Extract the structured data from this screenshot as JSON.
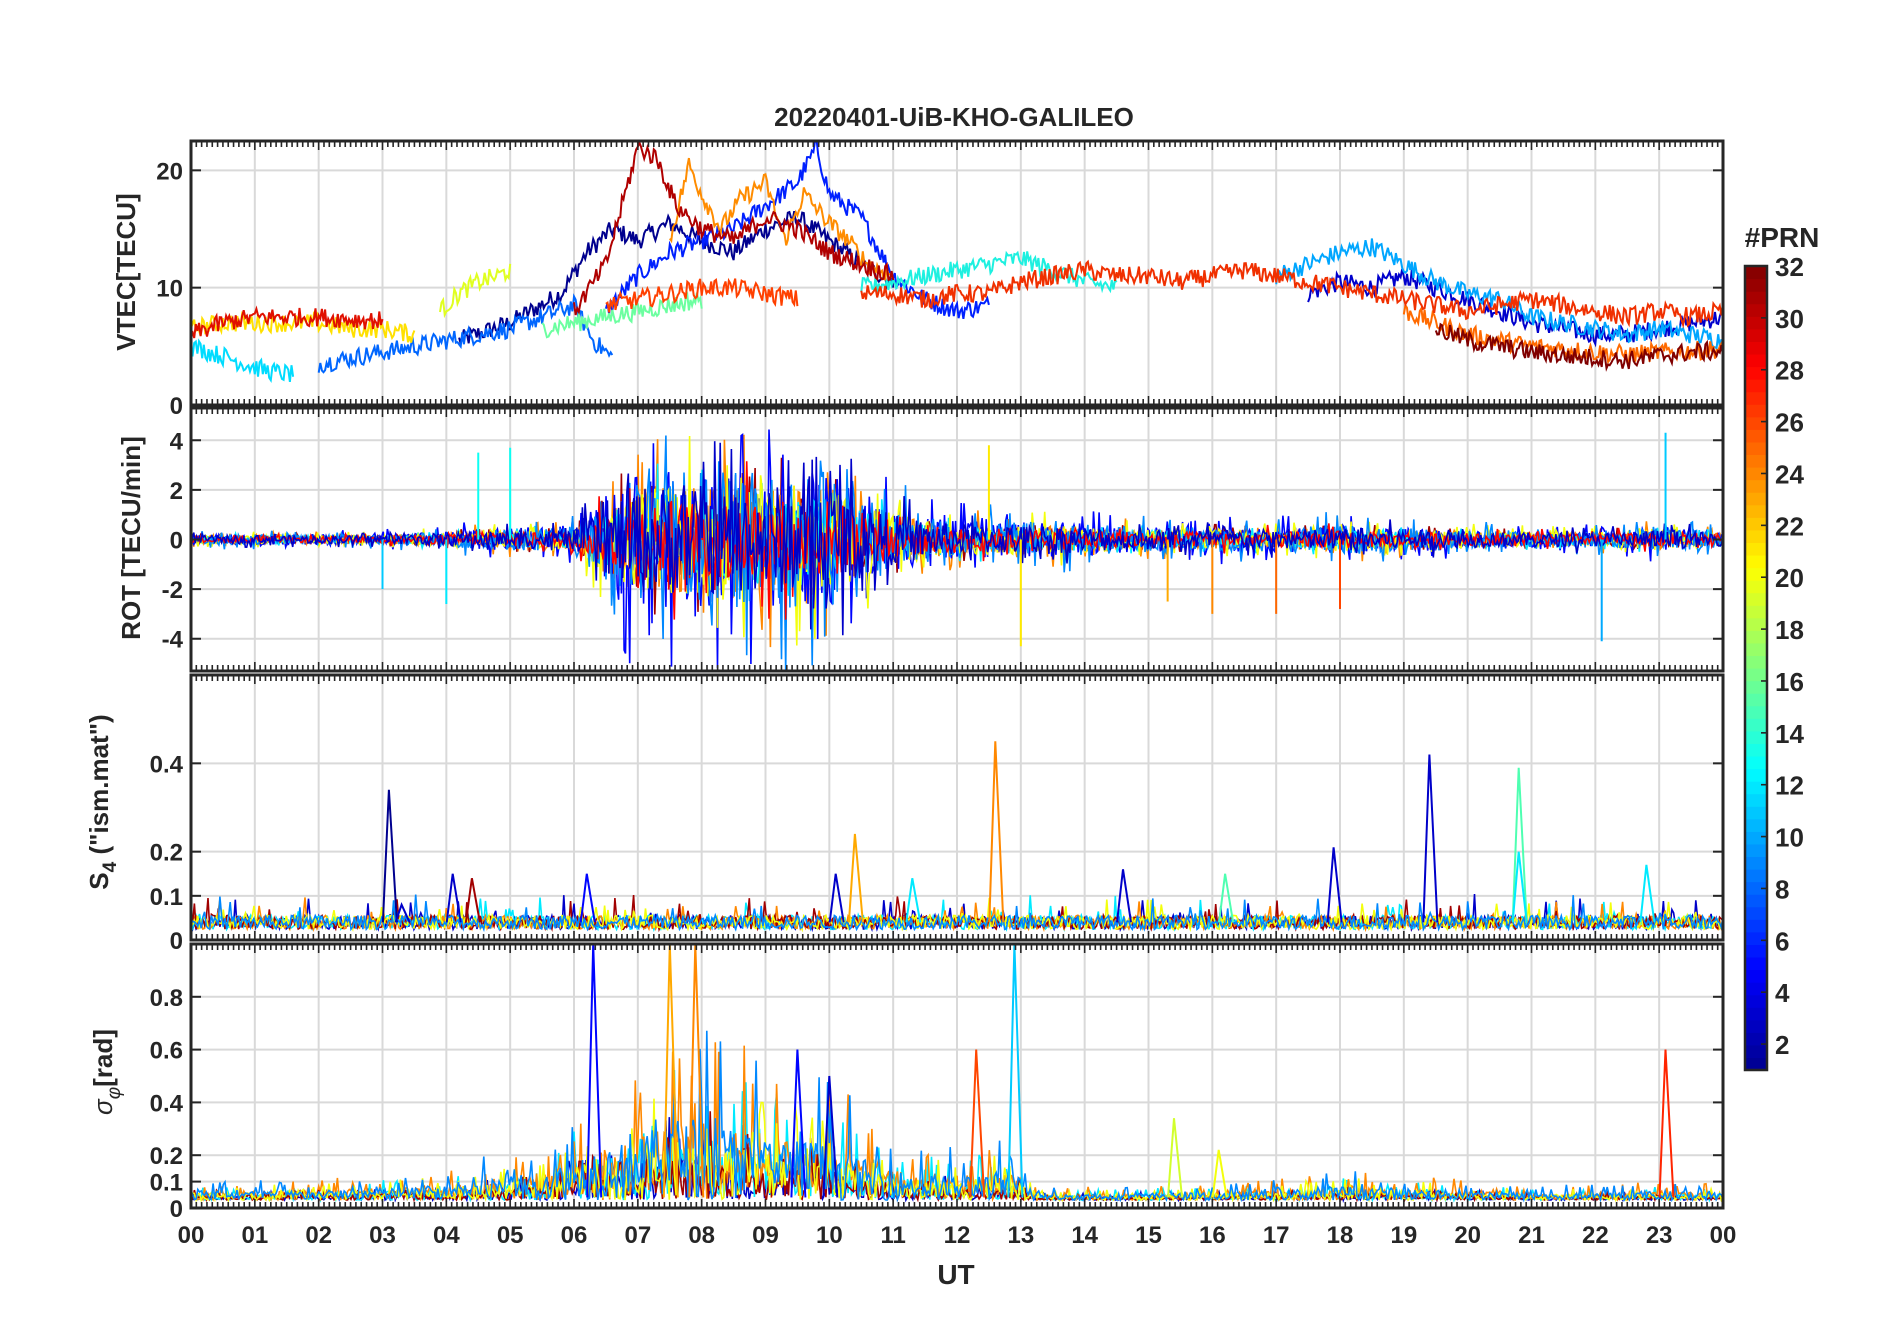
{
  "chart_data": {
    "title": "20220401-UiB-KHO-GALILEO",
    "xlabel": "UT",
    "x_tick_labels": [
      "00",
      "01",
      "02",
      "03",
      "04",
      "05",
      "06",
      "07",
      "08",
      "09",
      "10",
      "11",
      "12",
      "13",
      "14",
      "15",
      "16",
      "17",
      "18",
      "19",
      "20",
      "21",
      "22",
      "23",
      "00"
    ],
    "x_range_hours": [
      0,
      24
    ],
    "grid": true,
    "colorbar": {
      "label": "#PRN",
      "range": [
        1,
        32
      ],
      "tick_values": [
        2,
        4,
        6,
        8,
        10,
        12,
        14,
        16,
        18,
        20,
        22,
        24,
        26,
        28,
        30,
        32
      ],
      "colormap": "jet",
      "placement": "right"
    },
    "panels": [
      {
        "id": "vtec",
        "type": "line",
        "ylabel": "VTEC[TECU]",
        "ylim": [
          0,
          22.5
        ],
        "yticks": [
          0,
          10,
          20
        ],
        "series": [
          {
            "prn": 1,
            "color": "#00008f",
            "x": [
              4.2,
              5.0,
              5.8,
              6.2,
              6.6,
              7.0,
              7.5,
              8.0,
              8.5,
              9.0,
              9.5,
              10.0,
              10.5,
              11.0
            ],
            "y": [
              5.5,
              7.0,
              9.5,
              13.0,
              15.0,
              14.0,
              15.5,
              14.0,
              13.0,
              15.0,
              16.0,
              14.0,
              12.0,
              10.5
            ]
          },
          {
            "prn": 3,
            "color": "#0000cc",
            "x": [
              17.5,
              18.0,
              18.5,
              19.0,
              19.5,
              20.0,
              20.5,
              21.0,
              21.5,
              22.0,
              22.5,
              23.0,
              23.5,
              24.0
            ],
            "y": [
              9.5,
              10.5,
              10.0,
              11.0,
              10.0,
              9.0,
              8.0,
              7.0,
              6.5,
              6.0,
              6.0,
              6.5,
              7.0,
              7.5
            ]
          },
          {
            "prn": 5,
            "color": "#0020ff",
            "x": [
              6.5,
              7.0,
              7.5,
              8.0,
              8.5,
              9.0,
              9.5,
              9.8,
              10.0,
              10.5,
              11.0,
              11.5,
              12.0,
              12.5
            ],
            "y": [
              8.0,
              11.0,
              13.0,
              14.0,
              15.0,
              17.0,
              19.0,
              22.0,
              18.0,
              16.0,
              11.0,
              9.0,
              8.0,
              8.5
            ]
          },
          {
            "prn": 7,
            "color": "#0066ff",
            "x": [
              2.0,
              2.5,
              3.0,
              3.5,
              4.0,
              4.5,
              5.0,
              5.5,
              6.0,
              6.3,
              6.6
            ],
            "y": [
              3.5,
              4.0,
              4.5,
              5.0,
              5.5,
              6.0,
              6.5,
              7.5,
              8.5,
              5.5,
              4.0
            ]
          },
          {
            "prn": 9,
            "color": "#00a6ff",
            "x": [
              17.0,
              17.5,
              18.0,
              18.5,
              19.0,
              19.5,
              20.0,
              20.5,
              21.0,
              21.5,
              22.0,
              22.5,
              23.0,
              23.5,
              24.0
            ],
            "y": [
              11.0,
              12.0,
              13.0,
              13.5,
              12.0,
              10.5,
              9.5,
              9.0,
              7.5,
              7.0,
              6.5,
              6.0,
              6.5,
              6.0,
              5.5
            ]
          },
          {
            "prn": 11,
            "color": "#00dcff",
            "x": [
              0.0,
              0.3,
              0.6,
              1.0,
              1.3,
              1.6
            ],
            "y": [
              5.0,
              4.5,
              4.0,
              3.2,
              2.8,
              2.6
            ]
          },
          {
            "prn": 12,
            "color": "#1ef0e0",
            "x": [
              10.5,
              11.0,
              11.5,
              12.0,
              12.5,
              13.0,
              13.5,
              14.0,
              14.5
            ],
            "y": [
              10.0,
              10.5,
              11.0,
              11.5,
              12.0,
              12.5,
              11.5,
              10.5,
              10.0
            ]
          },
          {
            "prn": 15,
            "color": "#6cffa0",
            "x": [
              5.5,
              6.0,
              6.5,
              7.0,
              7.5,
              8.0
            ],
            "y": [
              6.5,
              7.0,
              7.5,
              8.0,
              8.5,
              9.0
            ]
          },
          {
            "prn": 19,
            "color": "#e0ff20",
            "x": [
              3.9,
              4.2,
              4.5,
              4.8,
              5.0
            ],
            "y": [
              8.0,
              9.5,
              10.5,
              11.0,
              11.5
            ]
          },
          {
            "prn": 20,
            "color": "#ffe000",
            "x": [
              0.0,
              0.5,
              1.0,
              1.5,
              2.0,
              2.5,
              3.0,
              3.5
            ],
            "y": [
              6.5,
              7.0,
              7.0,
              7.0,
              7.0,
              6.5,
              6.5,
              6.0
            ]
          },
          {
            "prn": 23,
            "color": "#ff8c00",
            "x": [
              7.5,
              7.8,
              8.0,
              8.3,
              8.6,
              9.0,
              9.3,
              9.6,
              10.0,
              10.3,
              10.6,
              11.0
            ],
            "y": [
              14.0,
              20.5,
              18.0,
              15.0,
              17.5,
              19.0,
              14.0,
              18.0,
              15.5,
              14.0,
              12.0,
              11.0
            ]
          },
          {
            "prn": 24,
            "color": "#ff6a00",
            "x": [
              19.0,
              19.5,
              20.0,
              20.5,
              21.0,
              21.5,
              22.0,
              22.5,
              23.0,
              23.5,
              24.0
            ],
            "y": [
              8.0,
              7.0,
              6.0,
              5.5,
              5.0,
              4.8,
              4.5,
              4.3,
              4.5,
              4.6,
              4.8
            ]
          },
          {
            "prn": 26,
            "color": "#ff4000",
            "x": [
              6.5,
              7.0,
              7.5,
              8.0,
              8.5,
              9.0,
              9.5
            ],
            "y": [
              8.5,
              9.0,
              9.5,
              10.0,
              10.0,
              9.5,
              9.0
            ]
          },
          {
            "prn": 27,
            "color": "#f03000",
            "x": [
              10.5,
              11.0,
              11.5,
              12.0,
              12.5,
              13.0,
              13.5,
              14.0,
              14.5,
              15.0,
              15.5,
              16.0,
              16.5,
              17.0,
              17.5,
              18.0,
              18.5,
              19.0,
              19.5,
              20.0,
              20.5,
              21.0,
              21.5,
              22.0,
              22.5,
              23.0,
              23.5,
              24.0
            ],
            "y": [
              9.5,
              9.5,
              9.0,
              9.5,
              9.5,
              10.5,
              11.0,
              11.5,
              11.0,
              11.0,
              10.5,
              11.0,
              11.5,
              11.0,
              10.5,
              10.0,
              9.5,
              9.0,
              8.5,
              8.0,
              8.5,
              9.0,
              8.5,
              8.0,
              7.5,
              8.0,
              7.5,
              8.0
            ]
          },
          {
            "prn": 29,
            "color": "#e01000",
            "x": [
              0.0,
              0.5,
              1.0,
              1.5,
              2.0,
              2.5,
              3.0
            ],
            "y": [
              6.0,
              7.0,
              7.5,
              7.5,
              7.5,
              7.3,
              7.2
            ]
          },
          {
            "prn": 31,
            "color": "#b00000",
            "x": [
              6.0,
              6.5,
              6.8,
              7.0,
              7.3,
              7.6,
              8.0,
              8.5,
              9.0,
              9.5,
              10.0,
              10.5,
              11.0
            ],
            "y": [
              8.0,
              12.0,
              18.0,
              22.0,
              21.0,
              17.0,
              15.0,
              14.0,
              16.0,
              15.0,
              13.0,
              12.0,
              11.0
            ]
          },
          {
            "prn": 32,
            "color": "#800000",
            "x": [
              19.5,
              20.0,
              20.5,
              21.0,
              21.5,
              22.0,
              22.5,
              23.0,
              23.5,
              24.0
            ],
            "y": [
              6.5,
              5.5,
              5.0,
              4.5,
              4.2,
              4.0,
              3.8,
              4.2,
              4.5,
              4.6
            ]
          }
        ]
      },
      {
        "id": "rot",
        "type": "noise-line",
        "ylabel": "ROT [TECU/min]",
        "ylim": [
          -5.3,
          5.3
        ],
        "yticks": [
          -4,
          -2,
          0,
          2,
          4
        ],
        "activity_envelope": {
          "x": [
            0,
            3,
            5,
            6,
            6.5,
            7,
            8,
            9,
            10,
            10.5,
            11,
            12,
            13,
            14,
            15,
            16,
            17,
            18,
            19,
            20,
            21,
            22,
            23,
            24
          ],
          "y": [
            0.4,
            0.4,
            0.9,
            1.0,
            3.5,
            5.5,
            5.5,
            5.5,
            5.5,
            4.0,
            2.5,
            1.5,
            1.5,
            1.3,
            1.0,
            1.0,
            1.0,
            1.2,
            1.0,
            0.8,
            0.7,
            0.7,
            1.0,
            0.6
          ]
        },
        "notable_spikes": [
          {
            "x": 3.0,
            "y": -2.0
          },
          {
            "x": 4.0,
            "y": -2.6
          },
          {
            "x": 4.5,
            "y": 3.5
          },
          {
            "x": 5.0,
            "y": 3.7
          },
          {
            "x": 12.5,
            "y": 3.8
          },
          {
            "x": 13.0,
            "y": -4.3
          },
          {
            "x": 15.3,
            "y": -2.5
          },
          {
            "x": 16.0,
            "y": -3.0
          },
          {
            "x": 17.0,
            "y": -3.0
          },
          {
            "x": 18.0,
            "y": -2.8
          },
          {
            "x": 22.1,
            "y": -4.1
          },
          {
            "x": 23.1,
            "y": 4.3
          }
        ]
      },
      {
        "id": "s4",
        "type": "noise-line",
        "ylabel": "S4 (\"ism.mat\")",
        "ylabel_main": "S",
        "ylabel_sub": "4",
        "ylabel_rest": " (\"ism.mat\")",
        "ylim": [
          0,
          0.6
        ],
        "yticks": [
          0,
          0.1,
          0.2,
          0.4
        ],
        "baseline": 0.04,
        "peaks": [
          {
            "x": 3.1,
            "y": 0.34,
            "prn": 1
          },
          {
            "x": 3.3,
            "y": 0.08,
            "prn": 3
          },
          {
            "x": 4.1,
            "y": 0.15,
            "prn": 3
          },
          {
            "x": 4.4,
            "y": 0.14,
            "prn": 31
          },
          {
            "x": 6.2,
            "y": 0.15,
            "prn": 5
          },
          {
            "x": 10.1,
            "y": 0.15,
            "prn": 3
          },
          {
            "x": 10.4,
            "y": 0.24,
            "prn": 23
          },
          {
            "x": 11.3,
            "y": 0.14,
            "prn": 12
          },
          {
            "x": 12.6,
            "y": 0.45,
            "prn": 24
          },
          {
            "x": 14.6,
            "y": 0.16,
            "prn": 3
          },
          {
            "x": 16.2,
            "y": 0.15,
            "prn": 15
          },
          {
            "x": 17.9,
            "y": 0.21,
            "prn": 3
          },
          {
            "x": 19.4,
            "y": 0.42,
            "prn": 3
          },
          {
            "x": 20.8,
            "y": 0.39,
            "prn": 15
          },
          {
            "x": 20.8,
            "y": 0.2,
            "prn": 12
          },
          {
            "x": 22.8,
            "y": 0.17,
            "prn": 12
          }
        ]
      },
      {
        "id": "sigma_phi",
        "type": "noise-line",
        "ylabel": "σφ[rad]",
        "ylabel_main": "σ",
        "ylabel_sub": "φ",
        "ylabel_rest": "[rad]",
        "ylim": [
          0,
          1.0
        ],
        "yticks": [
          0,
          0.1,
          0.2,
          0.4,
          0.6,
          0.8
        ],
        "activity_envelope": {
          "x": [
            0,
            2,
            4,
            5,
            5.8,
            6.2,
            7,
            7.5,
            8,
            9,
            10,
            10.5,
            11,
            12,
            12.5,
            13,
            13.2,
            14,
            15,
            16,
            17,
            18,
            19,
            20,
            21,
            22,
            23,
            24
          ],
          "y": [
            0.08,
            0.08,
            0.12,
            0.2,
            0.25,
            0.45,
            0.5,
            0.7,
            0.7,
            0.55,
            0.5,
            0.35,
            0.25,
            0.2,
            0.25,
            0.2,
            0.05,
            0.05,
            0.06,
            0.06,
            0.08,
            0.12,
            0.1,
            0.08,
            0.06,
            0.06,
            0.08,
            0.06
          ]
        },
        "peaks": [
          {
            "x": 6.3,
            "y": 1.0,
            "prn": 5
          },
          {
            "x": 7.5,
            "y": 1.0,
            "prn": 23
          },
          {
            "x": 7.9,
            "y": 1.0,
            "prn": 24
          },
          {
            "x": 9.5,
            "y": 0.6,
            "prn": 5
          },
          {
            "x": 10.0,
            "y": 0.5,
            "prn": 3
          },
          {
            "x": 12.3,
            "y": 0.6,
            "prn": 26
          },
          {
            "x": 12.9,
            "y": 1.0,
            "prn": 11
          },
          {
            "x": 15.4,
            "y": 0.34,
            "prn": 19
          },
          {
            "x": 16.1,
            "y": 0.22,
            "prn": 20
          },
          {
            "x": 23.1,
            "y": 0.6,
            "prn": 27
          }
        ]
      }
    ]
  }
}
